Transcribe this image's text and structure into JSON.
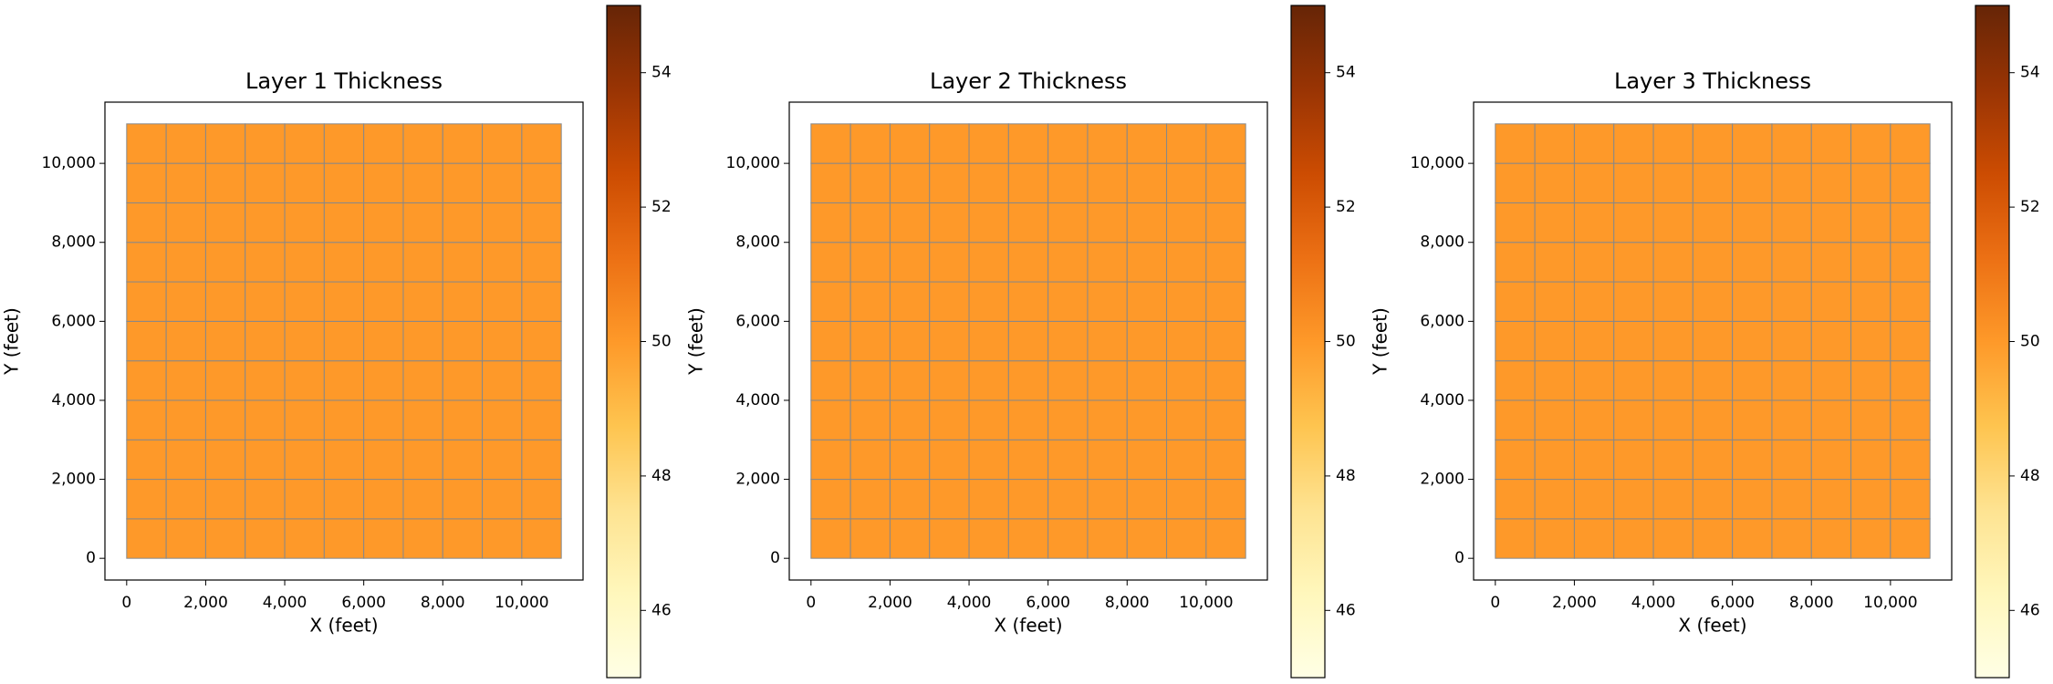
{
  "chart_data": [
    {
      "type": "heatmap",
      "title": "Layer 1 Thickness",
      "xlabel": "X (feet)",
      "ylabel": "Y (feet)",
      "xbins": [
        0,
        1000,
        2000,
        3000,
        4000,
        5000,
        6000,
        7000,
        8000,
        9000,
        10000,
        11000
      ],
      "ybins": [
        0,
        1000,
        2000,
        3000,
        4000,
        5000,
        6000,
        7000,
        8000,
        9000,
        10000,
        11000
      ],
      "values": [
        [
          50,
          50,
          50,
          50,
          50,
          50,
          50,
          50,
          50,
          50,
          50
        ],
        [
          50,
          50,
          50,
          50,
          50,
          50,
          50,
          50,
          50,
          50,
          50
        ],
        [
          50,
          50,
          50,
          50,
          50,
          50,
          50,
          50,
          50,
          50,
          50
        ],
        [
          50,
          50,
          50,
          50,
          50,
          50,
          50,
          50,
          50,
          50,
          50
        ],
        [
          50,
          50,
          50,
          50,
          50,
          50,
          50,
          50,
          50,
          50,
          50
        ],
        [
          50,
          50,
          50,
          50,
          50,
          50,
          50,
          50,
          50,
          50,
          50
        ],
        [
          50,
          50,
          50,
          50,
          50,
          50,
          50,
          50,
          50,
          50,
          50
        ],
        [
          50,
          50,
          50,
          50,
          50,
          50,
          50,
          50,
          50,
          50,
          50
        ],
        [
          50,
          50,
          50,
          50,
          50,
          50,
          50,
          50,
          50,
          50,
          50
        ],
        [
          50,
          50,
          50,
          50,
          50,
          50,
          50,
          50,
          50,
          50,
          50
        ],
        [
          50,
          50,
          50,
          50,
          50,
          50,
          50,
          50,
          50,
          50,
          50
        ]
      ],
      "xlim": [
        -550,
        11550
      ],
      "ylim": [
        -550,
        11550
      ],
      "xticks": [
        0,
        {
          "value": 2000,
          "label": "2,000"
        },
        {
          "value": 4000,
          "label": "4,000"
        },
        {
          "value": 6000,
          "label": "6,000"
        },
        {
          "value": 8000,
          "label": "8,000"
        },
        {
          "value": 10000,
          "label": "10,000"
        }
      ],
      "yticks": [
        0,
        {
          "value": 2000,
          "label": "2,000"
        },
        {
          "value": 4000,
          "label": "4,000"
        },
        {
          "value": 6000,
          "label": "6,000"
        },
        {
          "value": 8000,
          "label": "8,000"
        },
        {
          "value": 10000,
          "label": "10,000"
        }
      ],
      "clim": [
        45,
        55
      ],
      "cticks": [
        46,
        48,
        50,
        52,
        54
      ],
      "colormap": [
        "#ffffe5",
        "#fff7bc",
        "#fee391",
        "#fec44f",
        "#fe9929",
        "#ec7014",
        "#cc4c02",
        "#993404",
        "#662506"
      ],
      "edgecolor": "#888888"
    },
    {
      "type": "heatmap",
      "title": "Layer 2 Thickness",
      "xlabel": "X (feet)",
      "ylabel": "Y (feet)",
      "xbins": [
        0,
        1000,
        2000,
        3000,
        4000,
        5000,
        6000,
        7000,
        8000,
        9000,
        10000,
        11000
      ],
      "ybins": [
        0,
        1000,
        2000,
        3000,
        4000,
        5000,
        6000,
        7000,
        8000,
        9000,
        10000,
        11000
      ],
      "values": [
        [
          50,
          50,
          50,
          50,
          50,
          50,
          50,
          50,
          50,
          50,
          50
        ],
        [
          50,
          50,
          50,
          50,
          50,
          50,
          50,
          50,
          50,
          50,
          50
        ],
        [
          50,
          50,
          50,
          50,
          50,
          50,
          50,
          50,
          50,
          50,
          50
        ],
        [
          50,
          50,
          50,
          50,
          50,
          50,
          50,
          50,
          50,
          50,
          50
        ],
        [
          50,
          50,
          50,
          50,
          50,
          50,
          50,
          50,
          50,
          50,
          50
        ],
        [
          50,
          50,
          50,
          50,
          50,
          50,
          50,
          50,
          50,
          50,
          50
        ],
        [
          50,
          50,
          50,
          50,
          50,
          50,
          50,
          50,
          50,
          50,
          50
        ],
        [
          50,
          50,
          50,
          50,
          50,
          50,
          50,
          50,
          50,
          50,
          50
        ],
        [
          50,
          50,
          50,
          50,
          50,
          50,
          50,
          50,
          50,
          50,
          50
        ],
        [
          50,
          50,
          50,
          50,
          50,
          50,
          50,
          50,
          50,
          50,
          50
        ],
        [
          50,
          50,
          50,
          50,
          50,
          50,
          50,
          50,
          50,
          50,
          50
        ]
      ],
      "xlim": [
        -550,
        11550
      ],
      "ylim": [
        -550,
        11550
      ],
      "xticks": [
        0,
        {
          "value": 2000,
          "label": "2,000"
        },
        {
          "value": 4000,
          "label": "4,000"
        },
        {
          "value": 6000,
          "label": "6,000"
        },
        {
          "value": 8000,
          "label": "8,000"
        },
        {
          "value": 10000,
          "label": "10,000"
        }
      ],
      "yticks": [
        0,
        {
          "value": 2000,
          "label": "2,000"
        },
        {
          "value": 4000,
          "label": "4,000"
        },
        {
          "value": 6000,
          "label": "6,000"
        },
        {
          "value": 8000,
          "label": "8,000"
        },
        {
          "value": 10000,
          "label": "10,000"
        }
      ],
      "clim": [
        45,
        55
      ],
      "cticks": [
        46,
        48,
        50,
        52,
        54
      ],
      "colormap": [
        "#ffffe5",
        "#fff7bc",
        "#fee391",
        "#fec44f",
        "#fe9929",
        "#ec7014",
        "#cc4c02",
        "#993404",
        "#662506"
      ],
      "edgecolor": "#888888"
    },
    {
      "type": "heatmap",
      "title": "Layer 3 Thickness",
      "xlabel": "X (feet)",
      "ylabel": "Y (feet)",
      "xbins": [
        0,
        1000,
        2000,
        3000,
        4000,
        5000,
        6000,
        7000,
        8000,
        9000,
        10000,
        11000
      ],
      "ybins": [
        0,
        1000,
        2000,
        3000,
        4000,
        5000,
        6000,
        7000,
        8000,
        9000,
        10000,
        11000
      ],
      "values": [
        [
          50,
          50,
          50,
          50,
          50,
          50,
          50,
          50,
          50,
          50,
          50
        ],
        [
          50,
          50,
          50,
          50,
          50,
          50,
          50,
          50,
          50,
          50,
          50
        ],
        [
          50,
          50,
          50,
          50,
          50,
          50,
          50,
          50,
          50,
          50,
          50
        ],
        [
          50,
          50,
          50,
          50,
          50,
          50,
          50,
          50,
          50,
          50,
          50
        ],
        [
          50,
          50,
          50,
          50,
          50,
          50,
          50,
          50,
          50,
          50,
          50
        ],
        [
          50,
          50,
          50,
          50,
          50,
          50,
          50,
          50,
          50,
          50,
          50
        ],
        [
          50,
          50,
          50,
          50,
          50,
          50,
          50,
          50,
          50,
          50,
          50
        ],
        [
          50,
          50,
          50,
          50,
          50,
          50,
          50,
          50,
          50,
          50,
          50
        ],
        [
          50,
          50,
          50,
          50,
          50,
          50,
          50,
          50,
          50,
          50,
          50
        ],
        [
          50,
          50,
          50,
          50,
          50,
          50,
          50,
          50,
          50,
          50,
          50
        ],
        [
          50,
          50,
          50,
          50,
          50,
          50,
          50,
          50,
          50,
          50,
          50
        ]
      ],
      "xlim": [
        -550,
        11550
      ],
      "ylim": [
        -550,
        11550
      ],
      "xticks": [
        0,
        {
          "value": 2000,
          "label": "2,000"
        },
        {
          "value": 4000,
          "label": "4,000"
        },
        {
          "value": 6000,
          "label": "6,000"
        },
        {
          "value": 8000,
          "label": "8,000"
        },
        {
          "value": 10000,
          "label": "10,000"
        }
      ],
      "yticks": [
        0,
        {
          "value": 2000,
          "label": "2,000"
        },
        {
          "value": 4000,
          "label": "4,000"
        },
        {
          "value": 6000,
          "label": "6,000"
        },
        {
          "value": 8000,
          "label": "8,000"
        },
        {
          "value": 10000,
          "label": "10,000"
        }
      ],
      "clim": [
        45,
        55
      ],
      "cticks": [
        46,
        48,
        50,
        52,
        54
      ],
      "colormap": [
        "#ffffe5",
        "#fff7bc",
        "#fee391",
        "#fec44f",
        "#fe9929",
        "#ec7014",
        "#cc4c02",
        "#993404",
        "#662506"
      ],
      "edgecolor": "#888888"
    }
  ]
}
